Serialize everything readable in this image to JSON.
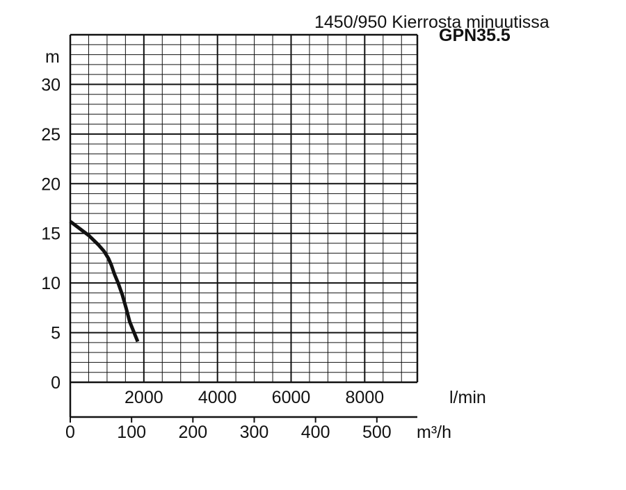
{
  "title": "1450/950 Kierrosta minuutissa",
  "subtitle": "GPN35.5",
  "chart_data": {
    "type": "line",
    "title": "1450/950 Kierrosta minuutissa",
    "subtitle": "GPN35.5",
    "ylabel": "m",
    "xlabel": "m³/h",
    "secondary_xlabel": "l/min",
    "ylim": [
      0,
      35
    ],
    "xlim": [
      0,
      566
    ],
    "secondary_xlim": [
      0,
      9430
    ],
    "y_ticks": [
      {
        "value": 0,
        "label": "0"
      },
      {
        "value": 5,
        "label": "5"
      },
      {
        "value": 10,
        "label": "10"
      },
      {
        "value": 15,
        "label": "15"
      },
      {
        "value": 20,
        "label": "20"
      },
      {
        "value": 25,
        "label": "25"
      },
      {
        "value": 30,
        "label": "30"
      }
    ],
    "x_ticks": [
      {
        "value": 0,
        "label": "0"
      },
      {
        "value": 100,
        "label": "100"
      },
      {
        "value": 200,
        "label": "200"
      },
      {
        "value": 300,
        "label": "300"
      },
      {
        "value": 400,
        "label": "400"
      },
      {
        "value": 500,
        "label": "500"
      }
    ],
    "secondary_x_ticks": [
      {
        "value": 2000,
        "label": "2000"
      },
      {
        "value": 4000,
        "label": "4000"
      },
      {
        "value": 6000,
        "label": "6000"
      },
      {
        "value": 8000,
        "label": "8000"
      }
    ],
    "grid": true,
    "grid_minor": {
      "x_step_lmin": 500,
      "y_step_m": 1
    },
    "grid_major": {
      "x_step_lmin": 2000,
      "y_step_m": 5
    },
    "line_color": "#111111",
    "series": [
      {
        "x": [
          0,
          15,
          30,
          45,
          55,
          62,
          67,
          72,
          78,
          85,
          91,
          97,
          110
        ],
        "y": [
          16.2,
          15.5,
          14.8,
          13.9,
          13.2,
          12.5,
          11.8,
          10.9,
          10.0,
          8.8,
          7.5,
          6.1,
          4.1
        ]
      }
    ]
  }
}
